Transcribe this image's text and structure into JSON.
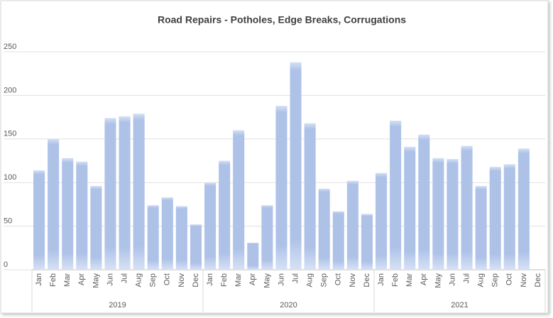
{
  "chart_data": {
    "type": "bar",
    "title": "Road Repairs - Potholes, Edge Breaks, Corrugations",
    "categories": [
      "Jan",
      "Feb",
      "Mar",
      "Apr",
      "May",
      "Jun",
      "Jul",
      "Aug",
      "Sep",
      "Oct",
      "Nov",
      "Dec",
      "Jan",
      "Feb",
      "Mar",
      "Apr",
      "May",
      "Jun",
      "Jul",
      "Aug",
      "Sep",
      "Oct",
      "Nov",
      "Dec",
      "Jan",
      "Feb",
      "Mar",
      "Apr",
      "May",
      "Jun",
      "Jul",
      "Aug",
      "Sep",
      "Oct",
      "Nov",
      "Dec"
    ],
    "groups": [
      "2019",
      "2020",
      "2021"
    ],
    "values": [
      114,
      150,
      128,
      124,
      96,
      174,
      176,
      179,
      74,
      83,
      73,
      52,
      100,
      125,
      160,
      31,
      74,
      188,
      238,
      168,
      93,
      67,
      102,
      64,
      111,
      171,
      141,
      155,
      128,
      127,
      142,
      96,
      118,
      121,
      139,
      null
    ],
    "color": "#aec2e8",
    "ylim": [
      0,
      250
    ],
    "yticks": [
      0,
      50,
      100,
      150,
      200,
      250
    ],
    "grid": true
  }
}
